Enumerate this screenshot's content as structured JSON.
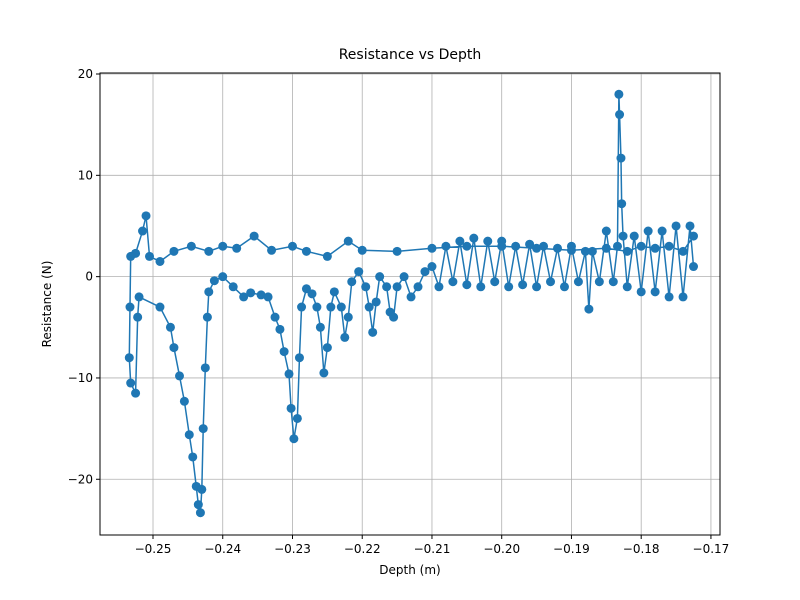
{
  "chart_data": {
    "type": "line",
    "title": "Resistance vs Depth",
    "x_label": "Depth (m)",
    "y_label": "Resistance (N)",
    "color": "#1f77b4",
    "grid": true,
    "markers": true,
    "xlim": [
      -0.2576,
      -0.1687
    ],
    "ylim": [
      -25.5,
      20.1
    ],
    "xticks": [
      {
        "value": -0.25,
        "label": "−0.25"
      },
      {
        "value": -0.24,
        "label": "−0.24"
      },
      {
        "value": -0.23,
        "label": "−0.23"
      },
      {
        "value": -0.22,
        "label": "−0.22"
      },
      {
        "value": -0.21,
        "label": "−0.21"
      },
      {
        "value": -0.2,
        "label": "−0.20"
      },
      {
        "value": -0.19,
        "label": "−0.19"
      },
      {
        "value": -0.18,
        "label": "−0.18"
      },
      {
        "value": -0.17,
        "label": "−0.17"
      }
    ],
    "yticks": [
      {
        "value": -20,
        "label": "−20"
      },
      {
        "value": -10,
        "label": "−10"
      },
      0,
      10,
      20
    ],
    "x": [
      -0.1725,
      -0.174,
      -0.176,
      -0.178,
      -0.18,
      -0.182,
      -0.185,
      -0.19,
      -0.195,
      -0.2,
      -0.205,
      -0.21,
      -0.215,
      -0.22,
      -0.222,
      -0.225,
      -0.228,
      -0.23,
      -0.233,
      -0.2355,
      -0.238,
      -0.24,
      -0.242,
      -0.2445,
      -0.247,
      -0.249,
      -0.2505,
      -0.251,
      -0.2515,
      -0.2525,
      -0.2532,
      -0.2533,
      -0.2534,
      -0.2532,
      -0.2525,
      -0.2522,
      -0.252,
      -0.249,
      -0.2475,
      -0.247,
      -0.2462,
      -0.2455,
      -0.2448,
      -0.2443,
      -0.2438,
      -0.2435,
      -0.2432,
      -0.243,
      -0.2428,
      -0.2425,
      -0.2422,
      -0.242,
      -0.2412,
      -0.24,
      -0.2385,
      -0.237,
      -0.236,
      -0.2345,
      -0.2335,
      -0.2325,
      -0.2318,
      -0.2312,
      -0.2305,
      -0.2302,
      -0.2298,
      -0.2293,
      -0.229,
      -0.2287,
      -0.228,
      -0.2272,
      -0.2265,
      -0.226,
      -0.2255,
      -0.225,
      -0.2245,
      -0.224,
      -0.223,
      -0.2225,
      -0.222,
      -0.2215,
      -0.2205,
      -0.2195,
      -0.219,
      -0.2185,
      -0.218,
      -0.2175,
      -0.2165,
      -0.216,
      -0.2155,
      -0.215,
      -0.214,
      -0.213,
      -0.212,
      -0.211,
      -0.21,
      -0.209,
      -0.208,
      -0.207,
      -0.206,
      -0.205,
      -0.204,
      -0.203,
      -0.202,
      -0.201,
      -0.2,
      -0.199,
      -0.198,
      -0.197,
      -0.196,
      -0.195,
      -0.194,
      -0.193,
      -0.192,
      -0.191,
      -0.19,
      -0.189,
      -0.188,
      -0.1875,
      -0.187,
      -0.186,
      -0.185,
      -0.184,
      -0.1834,
      -0.1832,
      -0.1831,
      -0.1829,
      -0.1828,
      -0.1826,
      -0.182,
      -0.181,
      -0.18,
      -0.179,
      -0.178,
      -0.177,
      -0.176,
      -0.175,
      -0.174,
      -0.173,
      -0.1725
    ],
    "values": [
      4,
      2.5,
      3,
      2.8,
      3,
      2.5,
      2.8,
      2.6,
      2.8,
      3,
      3,
      2.8,
      2.5,
      2.6,
      3.5,
      2,
      2.5,
      3,
      2.6,
      4,
      2.8,
      3,
      2.5,
      3,
      2.5,
      1.5,
      2,
      6,
      4.5,
      2.3,
      2,
      -3,
      -8,
      -10.5,
      -11.5,
      -4,
      -2,
      -3,
      -5,
      -7,
      -9.8,
      -12.3,
      -15.6,
      -17.8,
      -20.7,
      -22.5,
      -23.3,
      -21,
      -15,
      -9,
      -4,
      -1.5,
      -0.4,
      0,
      -1,
      -2,
      -1.6,
      -1.8,
      -2,
      -4,
      -5.2,
      -7.4,
      -9.6,
      -13,
      -16,
      -14,
      -8,
      -3,
      -1.2,
      -1.7,
      -3,
      -5,
      -9.5,
      -7,
      -3,
      -1.5,
      -3,
      -6,
      -4,
      -0.5,
      0.5,
      -1,
      -3,
      -5.5,
      -2.5,
      0,
      -1,
      -3.5,
      -4,
      -1,
      0,
      -2,
      -1,
      0.5,
      1,
      -1,
      3,
      -0.5,
      3.5,
      -0.8,
      3.8,
      -1,
      3.5,
      -0.5,
      3.5,
      -1,
      3,
      -0.8,
      3.2,
      -1,
      3,
      -0.5,
      2.8,
      -1,
      3,
      -0.5,
      2.5,
      -3.2,
      2.5,
      -0.5,
      4.5,
      -0.5,
      3,
      18,
      16,
      11.7,
      7.2,
      4,
      -1,
      4,
      -1.5,
      4.5,
      -1.5,
      4.5,
      -2,
      5,
      -2,
      5,
      1
    ]
  }
}
